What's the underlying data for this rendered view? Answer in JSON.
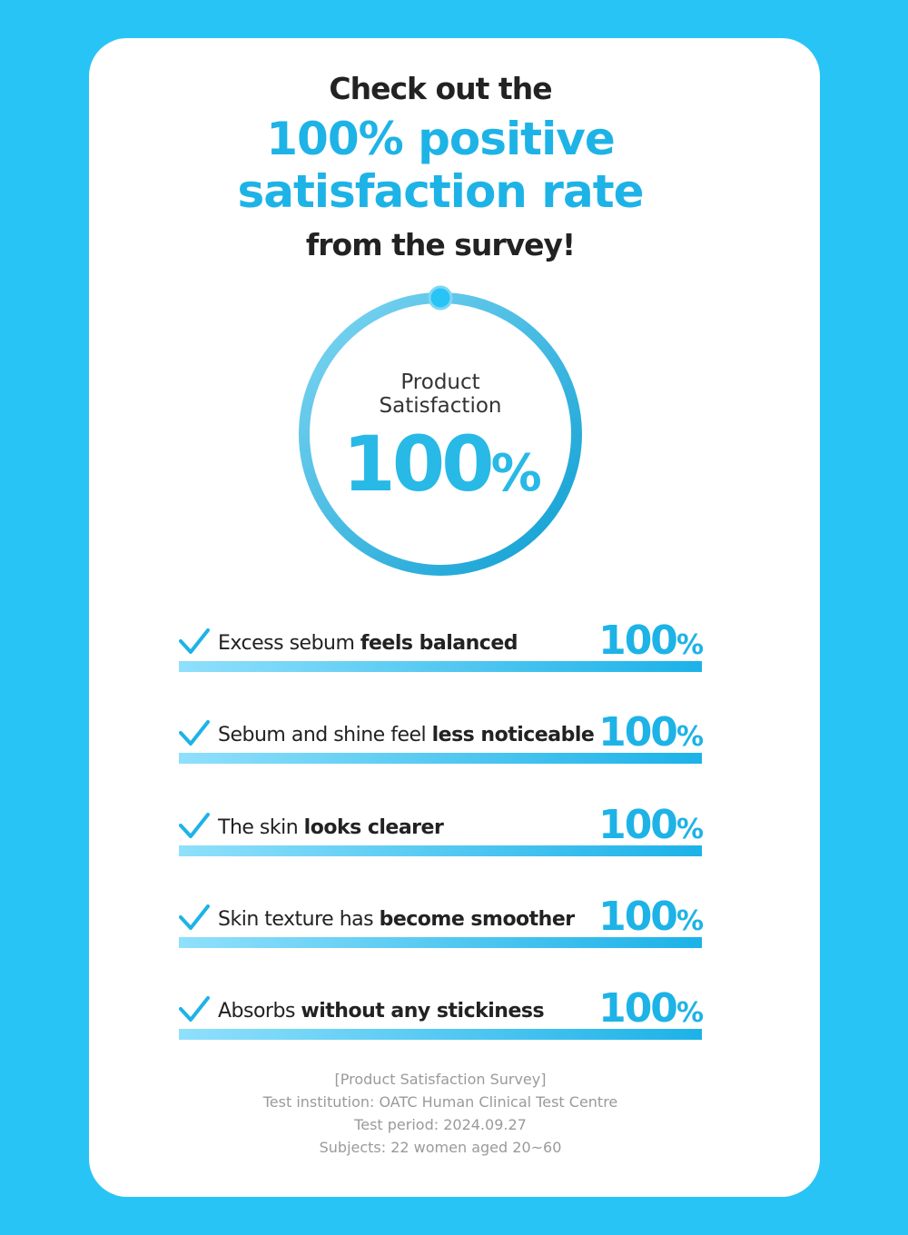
{
  "header": {
    "line1": "Check out the",
    "line2": "100% positive",
    "line3": "satisfaction rate",
    "line4": "from the survey!"
  },
  "ring": {
    "label_line1": "Product",
    "label_line2": "Satisfaction",
    "number": "100",
    "unit": "%"
  },
  "items": [
    {
      "regular": "Excess sebum ",
      "bold": "feels balanced",
      "number": "100",
      "unit": "%"
    },
    {
      "regular": "Sebum and shine feel ",
      "bold": "less noticeable",
      "number": "100",
      "unit": "%"
    },
    {
      "regular": "The skin ",
      "bold": "looks clearer",
      "number": "100",
      "unit": "%"
    },
    {
      "regular": "Skin texture has ",
      "bold": "become smoother",
      "number": "100",
      "unit": "%"
    },
    {
      "regular": "Absorbs ",
      "bold": "without any stickiness",
      "number": "100",
      "unit": "%"
    }
  ],
  "footer": [
    "[Product Satisfaction Survey]",
    "Test institution: OATC Human Clinical Test Centre",
    "Test period: 2024.09.27",
    "Subjects: 22 women aged 20~60"
  ]
}
